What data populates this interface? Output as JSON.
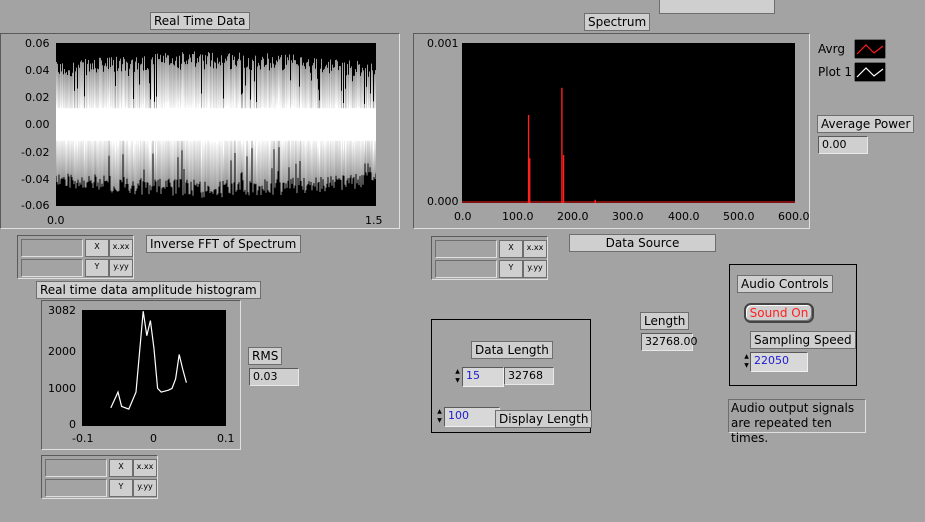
{
  "real_time": {
    "title": "Real Time Data",
    "y_ticks": [
      "0.06",
      "0.04",
      "0.02",
      "0.00",
      "-0.02",
      "-0.04",
      "-0.06"
    ],
    "x_ticks": [
      "0.0",
      "1.5"
    ],
    "xlim": [
      0.0,
      1.5
    ],
    "ylim": [
      -0.06,
      0.06
    ]
  },
  "spectrum": {
    "title": "Spectrum",
    "y_ticks": [
      "0.001",
      "0.000"
    ],
    "x_ticks": [
      "0.0",
      "100.0",
      "200.0",
      "300.0",
      "400.0",
      "500.0",
      "600.0"
    ],
    "legend": [
      {
        "name": "Avrg",
        "color": "#ff2020"
      },
      {
        "name": "Plot 1",
        "color": "#ffffff"
      }
    ]
  },
  "inverse_fft_label": "Inverse FFT of Spectrum",
  "data_source_label": "Data Source",
  "histogram": {
    "title": "Real time data amplitude histogram",
    "y_ticks": [
      "3082",
      "2000",
      "1000",
      "0"
    ],
    "x_ticks": [
      "-0.1",
      "0",
      "0.1"
    ]
  },
  "rms": {
    "label": "RMS",
    "value": "0.03"
  },
  "average_power": {
    "label": "Average Power",
    "value": "0.00"
  },
  "length": {
    "label": "Length",
    "value": "32768.00"
  },
  "data_length": {
    "label": "Data Length",
    "exponent": "15",
    "value": "32768"
  },
  "display_length": {
    "label": "Display Length",
    "value": "100"
  },
  "audio": {
    "title": "Audio Controls",
    "sound_button": "Sound On",
    "sampling_label": "Sampling Speed",
    "sampling_value": "22050",
    "note_line1": "Audio output signals",
    "note_line2": "are repeated ten times."
  },
  "graph_palette": {
    "x_btn": "X",
    "y_btn": "Y",
    "fmt_x": "x.xx",
    "fmt_y": "y.yy"
  },
  "chart_data": [
    {
      "type": "line",
      "title": "Real Time Data",
      "xlim": [
        0.0,
        1.5
      ],
      "ylim": [
        -0.06,
        0.06
      ],
      "note": "dense audio waveform; envelope approx ±0.045 to ±0.057"
    },
    {
      "type": "bar",
      "title": "Spectrum",
      "xlim": [
        0.0,
        600.0
      ],
      "ylim": [
        0.0,
        0.001
      ],
      "series": [
        {
          "name": "Avrg",
          "x": [
            120,
            122,
            180,
            183,
            240
          ],
          "values": [
            0.00055,
            0.00028,
            0.00072,
            0.0003,
            2e-05
          ]
        }
      ]
    },
    {
      "type": "line",
      "title": "Real time data amplitude histogram",
      "xlim": [
        -0.1,
        0.1
      ],
      "ylim": [
        0,
        3082
      ],
      "x": [
        -0.06,
        -0.05,
        -0.045,
        -0.035,
        -0.025,
        -0.015,
        -0.01,
        -0.005,
        0.0,
        0.005,
        0.01,
        0.02,
        0.025,
        0.03,
        0.035,
        0.04,
        0.045
      ],
      "values": [
        480,
        900,
        520,
        450,
        900,
        3050,
        2400,
        2800,
        2050,
        1000,
        900,
        950,
        1000,
        1250,
        1900,
        1500,
        1150
      ]
    }
  ]
}
